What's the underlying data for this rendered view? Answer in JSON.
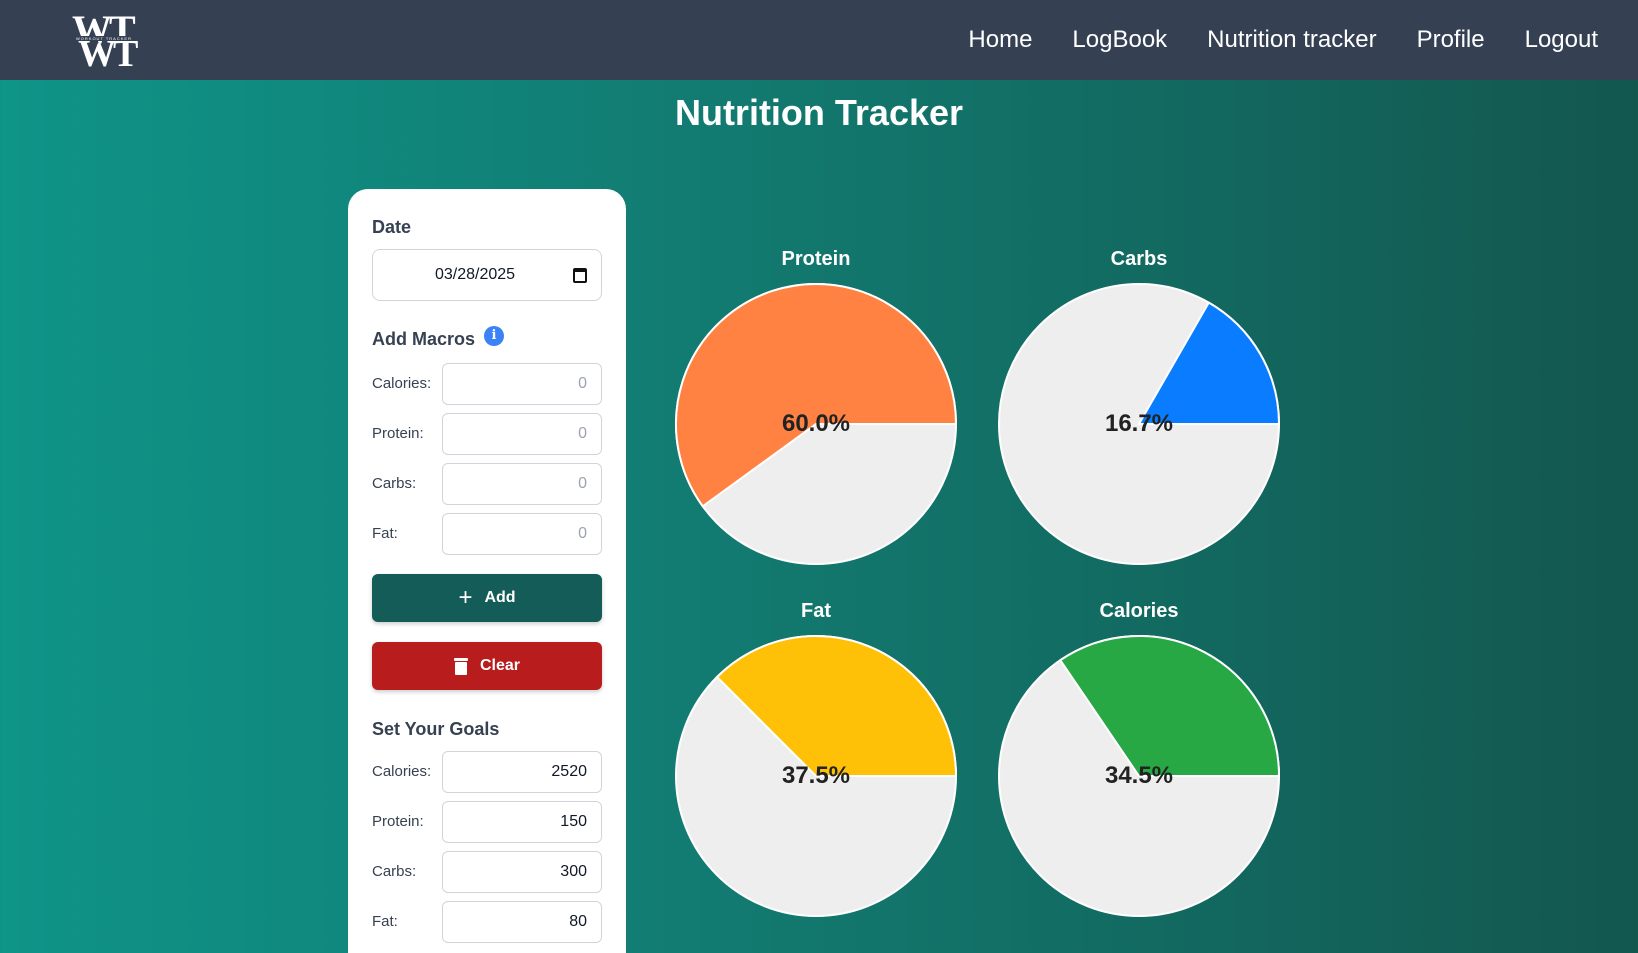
{
  "navbar": {
    "logo_letters_top": "WT",
    "logo_letters_bottom": "WT",
    "logo_tagline": "WORKOUT TRACKER",
    "links": [
      "Home",
      "LogBook",
      "Nutrition tracker",
      "Profile",
      "Logout"
    ]
  },
  "page": {
    "title": "Nutrition Tracker"
  },
  "form": {
    "date_label": "Date",
    "date_value": "03/28/2025",
    "add_macros_label": "Add Macros",
    "info_icon": "i",
    "macros": [
      {
        "label": "Calories:",
        "placeholder": "0"
      },
      {
        "label": "Protein:",
        "placeholder": "0"
      },
      {
        "label": "Carbs:",
        "placeholder": "0"
      },
      {
        "label": "Fat:",
        "placeholder": "0"
      }
    ],
    "add_button": "Add",
    "clear_button": "Clear",
    "goals_label": "Set Your Goals",
    "goals": [
      {
        "label": "Calories:",
        "value": "2520"
      },
      {
        "label": "Protein:",
        "value": "150"
      },
      {
        "label": "Carbs:",
        "value": "300"
      },
      {
        "label": "Fat:",
        "value": "80"
      }
    ]
  },
  "colors": {
    "protein": "#ff8243",
    "carbs": "#0a7cff",
    "fat": "#ffc107",
    "calories": "#28a745",
    "remaining": "#eeeeee"
  },
  "chart_data": [
    {
      "type": "pie",
      "title": "Protein",
      "values": [
        60.0,
        40.0
      ],
      "label": "60.0%"
    },
    {
      "type": "pie",
      "title": "Carbs",
      "values": [
        16.7,
        83.3
      ],
      "label": "16.7%"
    },
    {
      "type": "pie",
      "title": "Fat",
      "values": [
        37.5,
        62.5
      ],
      "label": "37.5%"
    },
    {
      "type": "pie",
      "title": "Calories",
      "values": [
        34.5,
        65.5
      ],
      "label": "34.5%"
    }
  ]
}
